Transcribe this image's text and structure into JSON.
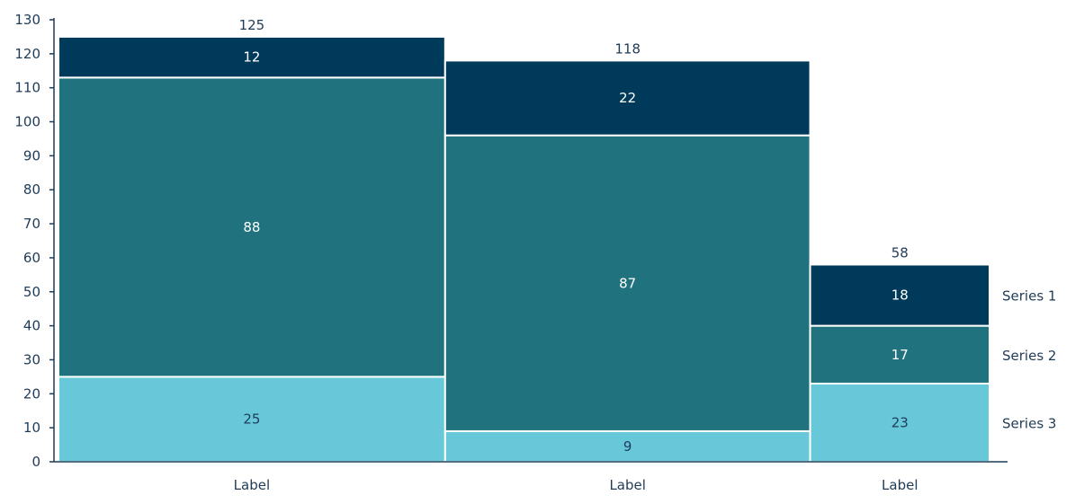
{
  "chart_data": {
    "type": "bar",
    "subtype": "variable-width stacked bar (mekko)",
    "categories": [
      "Label",
      "Label",
      "Label"
    ],
    "category_widths": [
      125,
      118,
      58
    ],
    "totals": [
      125,
      118,
      58
    ],
    "series": [
      {
        "name": "Series 3",
        "values": [
          25,
          9,
          23
        ],
        "color": "#67c8d9",
        "label_color": "#1f3b57"
      },
      {
        "name": "Series 2",
        "values": [
          88,
          87,
          17
        ],
        "color": "#20727f",
        "label_color": "#ffffff"
      },
      {
        "name": "Series 1",
        "values": [
          12,
          22,
          18
        ],
        "color": "#003a5a",
        "label_color": "#ffffff"
      }
    ],
    "ylim": [
      0,
      130
    ],
    "y_ticks": [
      "0",
      "10",
      "20",
      "30",
      "40",
      "50",
      "60",
      "70",
      "80",
      "90",
      "100",
      "110",
      "120",
      "130"
    ],
    "xlabel": "",
    "ylabel": "",
    "title": "",
    "grid": false,
    "legend_placement": "right, aligned with last column segments",
    "axis_color": "#1f3b57"
  }
}
